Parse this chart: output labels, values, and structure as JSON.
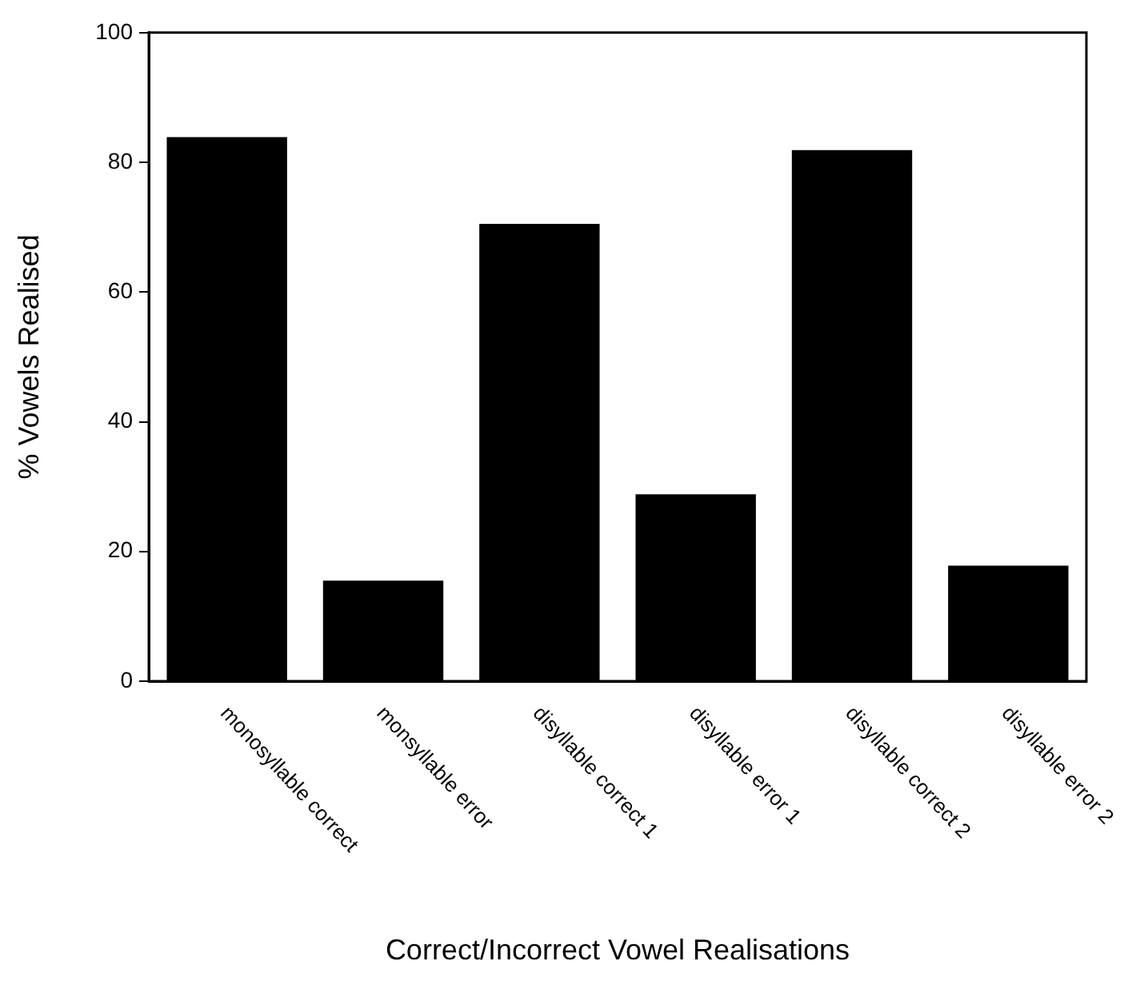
{
  "chart_data": {
    "type": "bar",
    "xlabel": "Correct/Incorrect Vowel Realisations",
    "ylabel": "% Vowels Realised",
    "categories": [
      "monosyllable correct",
      "monsyllable error",
      "disyllable correct 1",
      "disyllable error 1",
      "disyllable correct 2",
      "disyllable error 2"
    ],
    "values": [
      83.9,
      15.5,
      70.5,
      28.8,
      81.9,
      17.8
    ],
    "color": "#000000",
    "ylim": [
      0,
      100
    ],
    "yticks": [
      0,
      20,
      40,
      60,
      80,
      100
    ],
    "grid": false,
    "legend": false
  }
}
